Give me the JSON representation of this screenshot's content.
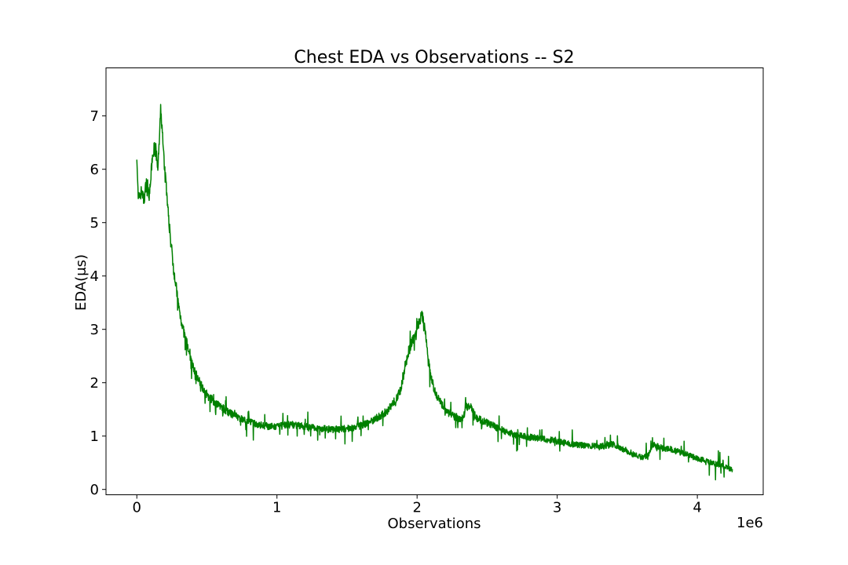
{
  "chart_data": {
    "type": "line",
    "title": "Chest EDA vs Observations -- S2",
    "xlabel": "Observations",
    "ylabel": "EDA(μs)",
    "x_offset_label": "1e6",
    "xlim": [
      -0.22,
      4.47
    ],
    "ylim": [
      -0.1,
      7.9
    ],
    "x_ticks": [
      0,
      1,
      2,
      3,
      4
    ],
    "x_tick_labels": [
      "0",
      "1",
      "2",
      "3",
      "4"
    ],
    "y_ticks": [
      0,
      1,
      2,
      3,
      4,
      5,
      6,
      7
    ],
    "y_tick_labels": [
      "0",
      "1",
      "2",
      "3",
      "4",
      "5",
      "6",
      "7"
    ],
    "grid": false,
    "series": [
      {
        "color": "#008000",
        "noise_amplitude": 0.12,
        "x": [
          0.0,
          0.01,
          0.02,
          0.035,
          0.05,
          0.07,
          0.09,
          0.11,
          0.13,
          0.15,
          0.16,
          0.17,
          0.18,
          0.19,
          0.2,
          0.21,
          0.22,
          0.24,
          0.26,
          0.28,
          0.3,
          0.33,
          0.36,
          0.4,
          0.45,
          0.5,
          0.55,
          0.6,
          0.65,
          0.7,
          0.75,
          0.8,
          0.85,
          0.9,
          0.95,
          1.0,
          1.05,
          1.1,
          1.15,
          1.2,
          1.25,
          1.3,
          1.35,
          1.4,
          1.45,
          1.5,
          1.55,
          1.6,
          1.65,
          1.7,
          1.75,
          1.8,
          1.85,
          1.88,
          1.9,
          1.92,
          1.94,
          1.96,
          1.98,
          2.0,
          2.02,
          2.04,
          2.06,
          2.08,
          2.1,
          2.12,
          2.15,
          2.2,
          2.25,
          2.3,
          2.33,
          2.35,
          2.38,
          2.42,
          2.46,
          2.5,
          2.6,
          2.7,
          2.8,
          2.9,
          3.0,
          3.1,
          3.2,
          3.3,
          3.35,
          3.4,
          3.45,
          3.5,
          3.55,
          3.6,
          3.65,
          3.68,
          3.7,
          3.75,
          3.8,
          3.85,
          3.9,
          3.95,
          4.0,
          4.05,
          4.1,
          4.15,
          4.2,
          4.25
        ],
        "y": [
          6.3,
          5.4,
          5.5,
          5.6,
          5.4,
          5.8,
          5.5,
          6.2,
          6.5,
          6.0,
          6.5,
          7.1,
          6.8,
          6.3,
          6.0,
          5.7,
          5.3,
          4.7,
          4.2,
          3.8,
          3.4,
          3.0,
          2.7,
          2.3,
          2.0,
          1.78,
          1.65,
          1.55,
          1.45,
          1.38,
          1.32,
          1.27,
          1.22,
          1.2,
          1.18,
          1.17,
          1.2,
          1.22,
          1.2,
          1.18,
          1.16,
          1.15,
          1.13,
          1.12,
          1.13,
          1.14,
          1.16,
          1.2,
          1.25,
          1.32,
          1.4,
          1.5,
          1.7,
          1.85,
          2.1,
          2.35,
          2.6,
          2.75,
          2.85,
          3.0,
          3.2,
          3.25,
          2.9,
          2.4,
          2.1,
          1.9,
          1.7,
          1.5,
          1.4,
          1.3,
          1.35,
          1.55,
          1.55,
          1.35,
          1.3,
          1.25,
          1.12,
          1.02,
          0.98,
          0.95,
          0.9,
          0.85,
          0.82,
          0.8,
          0.82,
          0.85,
          0.78,
          0.72,
          0.65,
          0.6,
          0.65,
          0.85,
          0.82,
          0.78,
          0.76,
          0.72,
          0.68,
          0.63,
          0.58,
          0.55,
          0.5,
          0.47,
          0.42,
          0.38
        ]
      }
    ]
  }
}
